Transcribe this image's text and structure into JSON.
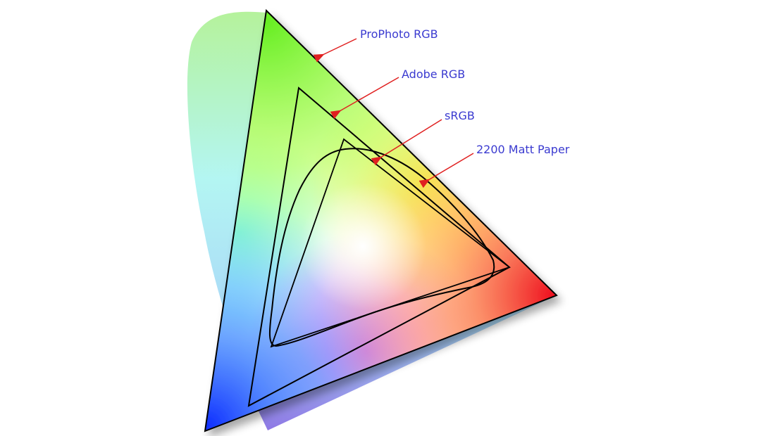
{
  "labels": {
    "prophoto": "ProPhoto RGB",
    "adobe": "Adobe RGB",
    "srgb": "sRGB",
    "paper": "2200 Matt Paper"
  },
  "colors": {
    "label_text": "#3a3ad0",
    "arrow": "#e02020",
    "outline": "#000000"
  }
}
